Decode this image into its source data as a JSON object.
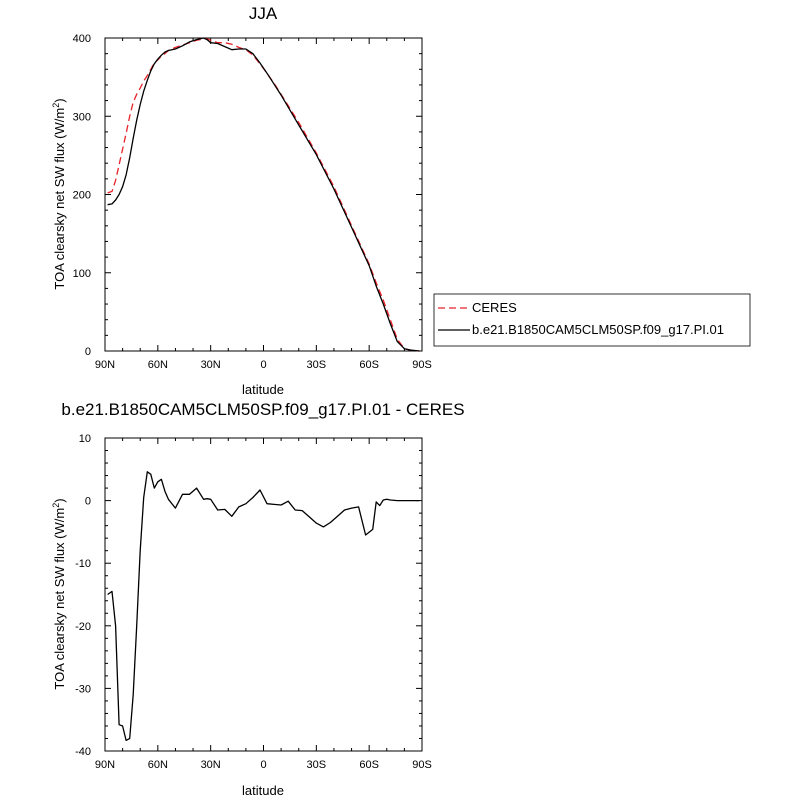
{
  "chart_data": [
    {
      "type": "line",
      "title": "JJA",
      "xlabel": "latitude",
      "ylabel": "TOA clearsky net SW flux (W/m",
      "ylabel_sup": "2",
      "ylabel_tail": ")",
      "xlim": [
        90,
        -90
      ],
      "ylim": [
        0,
        400
      ],
      "xticks": [
        {
          "value": 90,
          "label": "90N"
        },
        {
          "value": 60,
          "label": "60N"
        },
        {
          "value": 30,
          "label": "30N"
        },
        {
          "value": 0,
          "label": "0"
        },
        {
          "value": -30,
          "label": "30S"
        },
        {
          "value": -60,
          "label": "60S"
        },
        {
          "value": -90,
          "label": "90S"
        }
      ],
      "yticks": [
        {
          "value": 0,
          "label": "0"
        },
        {
          "value": 100,
          "label": "100"
        },
        {
          "value": 200,
          "label": "200"
        },
        {
          "value": 300,
          "label": "300"
        },
        {
          "value": 400,
          "label": "400"
        }
      ],
      "legend_position": "right-outside",
      "series": [
        {
          "name": "CERES",
          "color": "#e8232a",
          "dash": "dashed",
          "x": [
            88.5,
            86,
            84,
            82,
            80,
            78,
            76,
            74,
            72,
            70,
            68,
            66,
            64,
            62,
            60,
            58,
            56,
            54,
            50,
            46,
            42,
            38,
            34,
            32,
            30,
            26,
            22,
            18,
            14,
            10,
            6,
            2,
            -2,
            -6,
            -10,
            -20,
            -30,
            -40,
            -50,
            -60,
            -64,
            -68,
            -72,
            -76,
            -80,
            -84,
            -88.5
          ],
          "y": [
            202,
            204,
            218,
            238,
            258,
            278,
            300,
            318,
            328,
            336,
            345,
            352,
            360,
            368,
            372,
            377,
            380,
            384,
            388,
            391,
            394,
            397,
            399,
            399,
            397,
            394,
            394,
            392,
            388,
            385,
            378,
            367,
            355,
            342,
            328,
            292,
            253,
            210,
            160,
            111,
            87,
            65,
            40,
            15,
            3,
            1,
            0
          ]
        },
        {
          "name": "b.e21.B1850CAM5CLM50SP.f09_g17.PI.01",
          "color": "#000000",
          "dash": "solid",
          "x": [
            88.5,
            86,
            84,
            82,
            80,
            78,
            76,
            74,
            72,
            70,
            68,
            66,
            64,
            62,
            60,
            58,
            56,
            54,
            50,
            46,
            42,
            38,
            34,
            32,
            30,
            26,
            22,
            18,
            14,
            10,
            6,
            2,
            -2,
            -6,
            -10,
            -20,
            -30,
            -40,
            -50,
            -60,
            -64,
            -68,
            -72,
            -76,
            -80,
            -84,
            -88.5
          ],
          "y": [
            187,
            188,
            193,
            200,
            210,
            225,
            247,
            272,
            295,
            315,
            332,
            346,
            358,
            367,
            373,
            378,
            382,
            384,
            386,
            390,
            395,
            398,
            400,
            398,
            394,
            393,
            389,
            385,
            386,
            386,
            380,
            368,
            355,
            341,
            327,
            289,
            251,
            207,
            158,
            109,
            83,
            60,
            35,
            12,
            3,
            1,
            0
          ]
        }
      ]
    },
    {
      "type": "line",
      "title": "b.e21.B1850CAM5CLM50SP.f09_g17.PI.01 - CERES",
      "xlabel": "latitude",
      "ylabel": "TOA clearsky net SW flux (W/m",
      "ylabel_sup": "2",
      "ylabel_tail": ")",
      "xlim": [
        90,
        -90
      ],
      "ylim": [
        -40,
        10
      ],
      "xticks": [
        {
          "value": 90,
          "label": "90N"
        },
        {
          "value": 60,
          "label": "60N"
        },
        {
          "value": 30,
          "label": "30N"
        },
        {
          "value": 0,
          "label": "0"
        },
        {
          "value": -30,
          "label": "30S"
        },
        {
          "value": -60,
          "label": "60S"
        },
        {
          "value": -90,
          "label": "90S"
        }
      ],
      "yticks": [
        {
          "value": 10,
          "label": "10"
        },
        {
          "value": 0,
          "label": "0"
        },
        {
          "value": -10,
          "label": "-10"
        },
        {
          "value": -20,
          "label": "-20"
        },
        {
          "value": -30,
          "label": "-30"
        },
        {
          "value": -40,
          "label": "-40"
        }
      ],
      "series": [
        {
          "color": "#000000",
          "dash": "solid",
          "x": [
            88.5,
            86,
            84,
            82,
            80,
            78,
            76,
            74,
            72,
            70,
            68,
            66,
            64,
            62,
            60,
            58,
            56,
            54,
            50,
            46,
            42,
            38,
            34,
            32,
            30,
            26,
            22,
            18,
            14,
            10,
            6,
            2,
            -2,
            -6,
            -10,
            -14,
            -18,
            -22,
            -26,
            -30,
            -34,
            -38,
            -42,
            -46,
            -50,
            -54,
            -58,
            -62,
            -64,
            -66,
            -68,
            -70,
            -72,
            -76,
            -80,
            -84,
            -88.5
          ],
          "y": [
            -15,
            -14.5,
            -20,
            -35.8,
            -36,
            -38.3,
            -38,
            -31,
            -20,
            -8,
            0.5,
            4.6,
            4.2,
            2,
            3,
            3.4,
            1.5,
            0.2,
            -1.2,
            1.0,
            1.0,
            2.0,
            0.2,
            0.3,
            0.2,
            -1.5,
            -1.4,
            -2.5,
            -1.0,
            -0.5,
            0.5,
            1.7,
            -0.5,
            -0.6,
            -0.7,
            -0.1,
            -1.5,
            -1.6,
            -2.6,
            -3.6,
            -4.2,
            -3.5,
            -2.5,
            -1.5,
            -1.2,
            -1.0,
            -5.5,
            -4.6,
            -0.2,
            -0.8,
            0.1,
            0.2,
            0.1,
            0.0,
            0.0,
            0.0,
            0.0
          ]
        }
      ]
    }
  ]
}
